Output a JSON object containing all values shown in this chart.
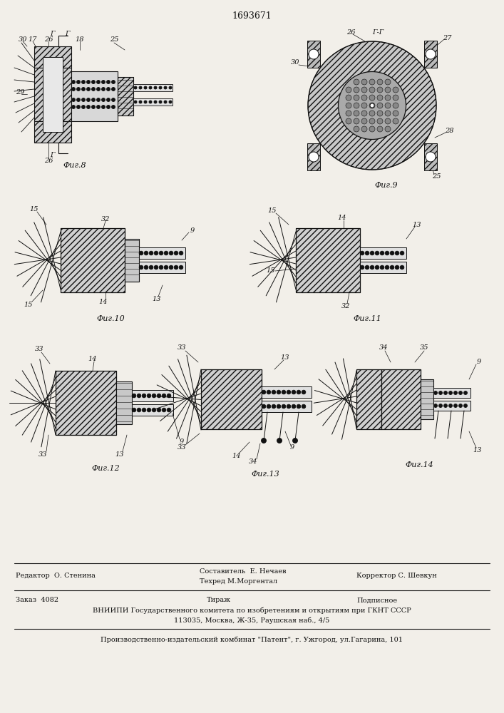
{
  "title": "1693671",
  "bg_color": "#f2efe9",
  "fig_width": 7.07,
  "fig_height": 10.0,
  "fig8_label": "Фиг.8",
  "fig9_label": "Фиг.9",
  "fig10_label": "Фиг.10",
  "fig11_label": "Фиг.11",
  "fig12_label": "Фиг.12",
  "fig13_label": "Фиг.13",
  "fig14_label": "Фиг.14",
  "editor": "Редактор  О. Стенина",
  "compiler_top": "Составитель  Е. Нечаев",
  "compiler_bot": "Техред М.Моргентал",
  "corrector": "Корректор С. Шевкун",
  "order": "Заказ  4082",
  "tirazh": "Тираж",
  "podpisnoe": "Подписное",
  "vnipi1": "ВНИИПИ Государственного комитета по изобретениям и открытиям при ГКНТ СССР",
  "vnipi2": "113035, Москва, Ж-35, Раушская наб., 4/5",
  "patent": "Производственно-издательский комбинат \"Патент\", г. Ужгород, ул.Гагарина, 101"
}
